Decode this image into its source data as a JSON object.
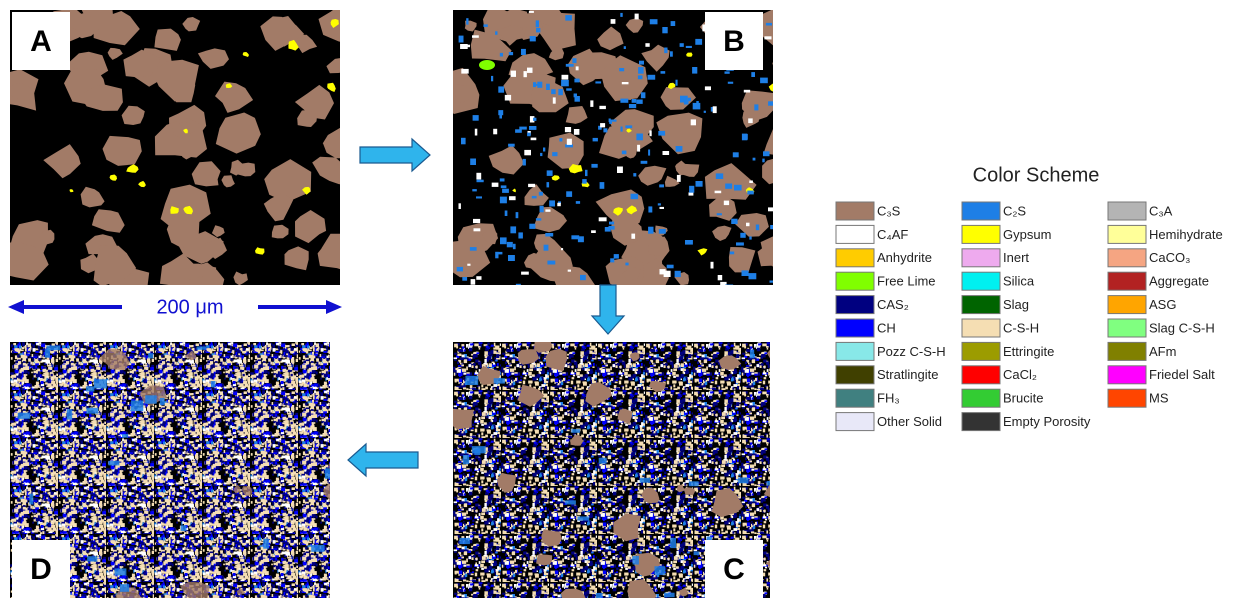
{
  "panels": [
    {
      "label": "A"
    },
    {
      "label": "B"
    },
    {
      "label": "C"
    },
    {
      "label": "D"
    }
  ],
  "scale_bar": {
    "label": "200 μm"
  },
  "legend": {
    "title": "Color Scheme",
    "items": [
      {
        "name": "C₃S",
        "color": "#a27b67"
      },
      {
        "name": "C₂S",
        "color": "#1e7fe6"
      },
      {
        "name": "C₃A",
        "color": "#b4b4b4"
      },
      {
        "name": "C₄AF",
        "color": "#ffffff"
      },
      {
        "name": "Gypsum",
        "color": "#ffff00"
      },
      {
        "name": "Hemihydrate",
        "color": "#ffff99"
      },
      {
        "name": "Anhydrite",
        "color": "#ffcc00"
      },
      {
        "name": "Inert",
        "color": "#eeaaee"
      },
      {
        "name": "CaCO₃",
        "color": "#f5a582"
      },
      {
        "name": "Free Lime",
        "color": "#80ff00"
      },
      {
        "name": "Silica",
        "color": "#00f0f0"
      },
      {
        "name": "Aggregate",
        "color": "#b22222"
      },
      {
        "name": "CAS₂",
        "color": "#000080"
      },
      {
        "name": "Slag",
        "color": "#006400"
      },
      {
        "name": "ASG",
        "color": "#ffa500"
      },
      {
        "name": "CH",
        "color": "#0000ff"
      },
      {
        "name": "C-S-H",
        "color": "#f5deb3"
      },
      {
        "name": "Slag C-S-H",
        "color": "#80ff80"
      },
      {
        "name": "Pozz C-S-H",
        "color": "#88e8e8"
      },
      {
        "name": "Ettringite",
        "color": "#9c9c00"
      },
      {
        "name": "AFm",
        "color": "#808000"
      },
      {
        "name": "Stratlingite",
        "color": "#404000"
      },
      {
        "name": "CaCl₂",
        "color": "#ff0000"
      },
      {
        "name": "Friedel Salt",
        "color": "#ff00ff"
      },
      {
        "name": "FH₃",
        "color": "#408080"
      },
      {
        "name": "Brucite",
        "color": "#33cc33"
      },
      {
        "name": "MS",
        "color": "#ff4500"
      },
      {
        "name": "Other Solid",
        "color": "#e8e8f8"
      },
      {
        "name": "Empty Porosity",
        "color": "#333333"
      }
    ]
  }
}
